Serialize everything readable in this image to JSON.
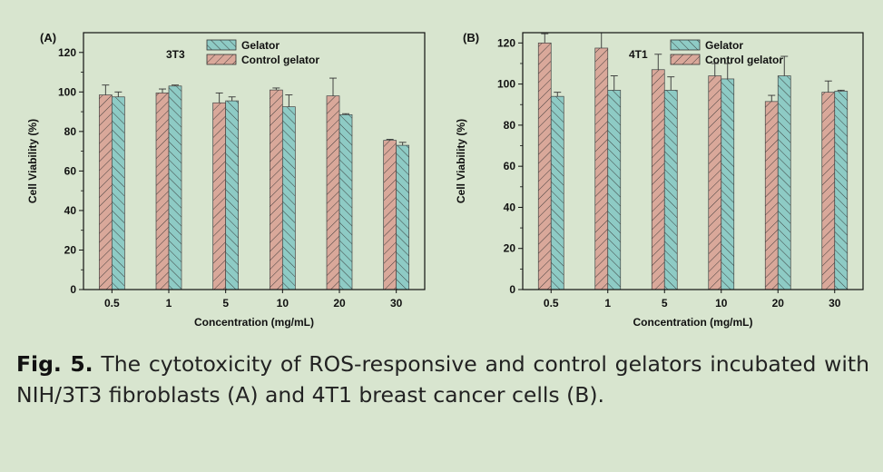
{
  "chart_data": [
    {
      "type": "bar",
      "panel": "(A)",
      "cell_line": "3T3",
      "categories": [
        "0.5",
        "1",
        "5",
        "10",
        "20",
        "30"
      ],
      "series": [
        {
          "name": "Control gelator",
          "values": [
            98.5,
            99.5,
            94.5,
            101,
            98,
            75.5
          ],
          "errors": [
            5,
            2,
            5,
            1,
            9,
            0.5
          ],
          "color": "#d9a89a"
        },
        {
          "name": "Gelator",
          "values": [
            97.5,
            103,
            95.5,
            92.5,
            88.5,
            73
          ],
          "errors": [
            2.5,
            0.5,
            2,
            6,
            0.5,
            1.5
          ],
          "color": "#8ecbc5"
        }
      ],
      "xlabel": "Concentration (mg/mL)",
      "ylabel": "Cell Viability (%)",
      "ylim": [
        0,
        130
      ],
      "yticks": [
        0,
        20,
        40,
        60,
        80,
        100,
        120
      ],
      "legend": "top"
    },
    {
      "type": "bar",
      "panel": "(B)",
      "cell_line": "4T1",
      "categories": [
        "0.5",
        "1",
        "5",
        "10",
        "20",
        "30"
      ],
      "series": [
        {
          "name": "Control gelator",
          "values": [
            120,
            117.5,
            107,
            104,
            91.5,
            96
          ],
          "errors": [
            4.5,
            7.5,
            7.5,
            6,
            3,
            5.5
          ],
          "color": "#d9a89a"
        },
        {
          "name": "Gelator",
          "values": [
            94,
            97,
            97,
            102.5,
            104,
            96.5
          ],
          "errors": [
            2,
            7,
            6.5,
            7.5,
            9.5,
            0.5
          ],
          "color": "#8ecbc5"
        }
      ],
      "xlabel": "Concentration (mg/mL)",
      "ylabel": "Cell Viability (%)",
      "ylim": [
        0,
        125
      ],
      "yticks": [
        0,
        20,
        40,
        60,
        80,
        100,
        120
      ],
      "legend": "top"
    }
  ],
  "caption": {
    "label": "Fig. 5.",
    "text": " The cytotoxicity of ROS-responsive and control gelators incubated with NIH/3T3 fibroblasts (A) and 4T1 breast cancer cells (B)."
  }
}
